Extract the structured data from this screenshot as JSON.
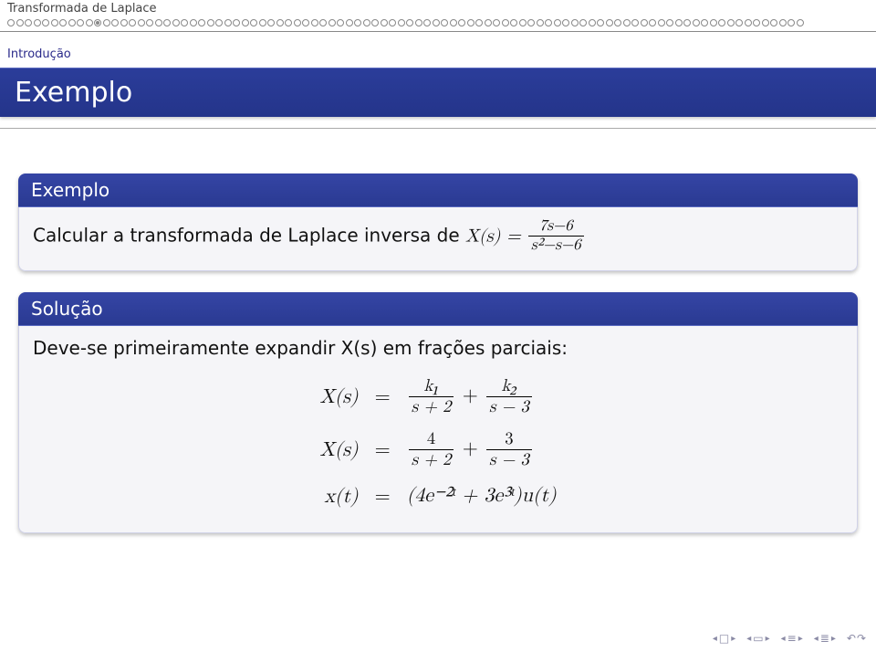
{
  "header": {
    "title": "Transformada de Laplace"
  },
  "progress": {
    "total": 92,
    "current": 11
  },
  "subsection": "Introdução",
  "slide_title": "Exemplo",
  "block_example": {
    "head": "Exemplo",
    "text_before": "Calcular a transformada de Laplace inversa de ",
    "lhs": "X(s) =",
    "frac_num": "7s−6",
    "frac_den": "s²−s−6"
  },
  "block_solution": {
    "head": "Solução",
    "intro": "Deve-se primeiramente expandir X(s) em frações parciais:",
    "rows": [
      {
        "lhs": "X(s)",
        "num1": "k₁",
        "den1": "s + 2",
        "num2": "k₂",
        "den2": "s − 3"
      },
      {
        "lhs": "X(s)",
        "num1": "4",
        "den1": "s + 2",
        "num2": "3",
        "den2": "s − 3"
      },
      {
        "lhs": "x(t)",
        "rhs_plain": "(4e⁻²ᵗ + 3e³ᵗ)u(t)"
      }
    ]
  },
  "colors": {
    "bar": "#2b3d9a",
    "text": "#000000",
    "sub": "#2a2a8a"
  }
}
